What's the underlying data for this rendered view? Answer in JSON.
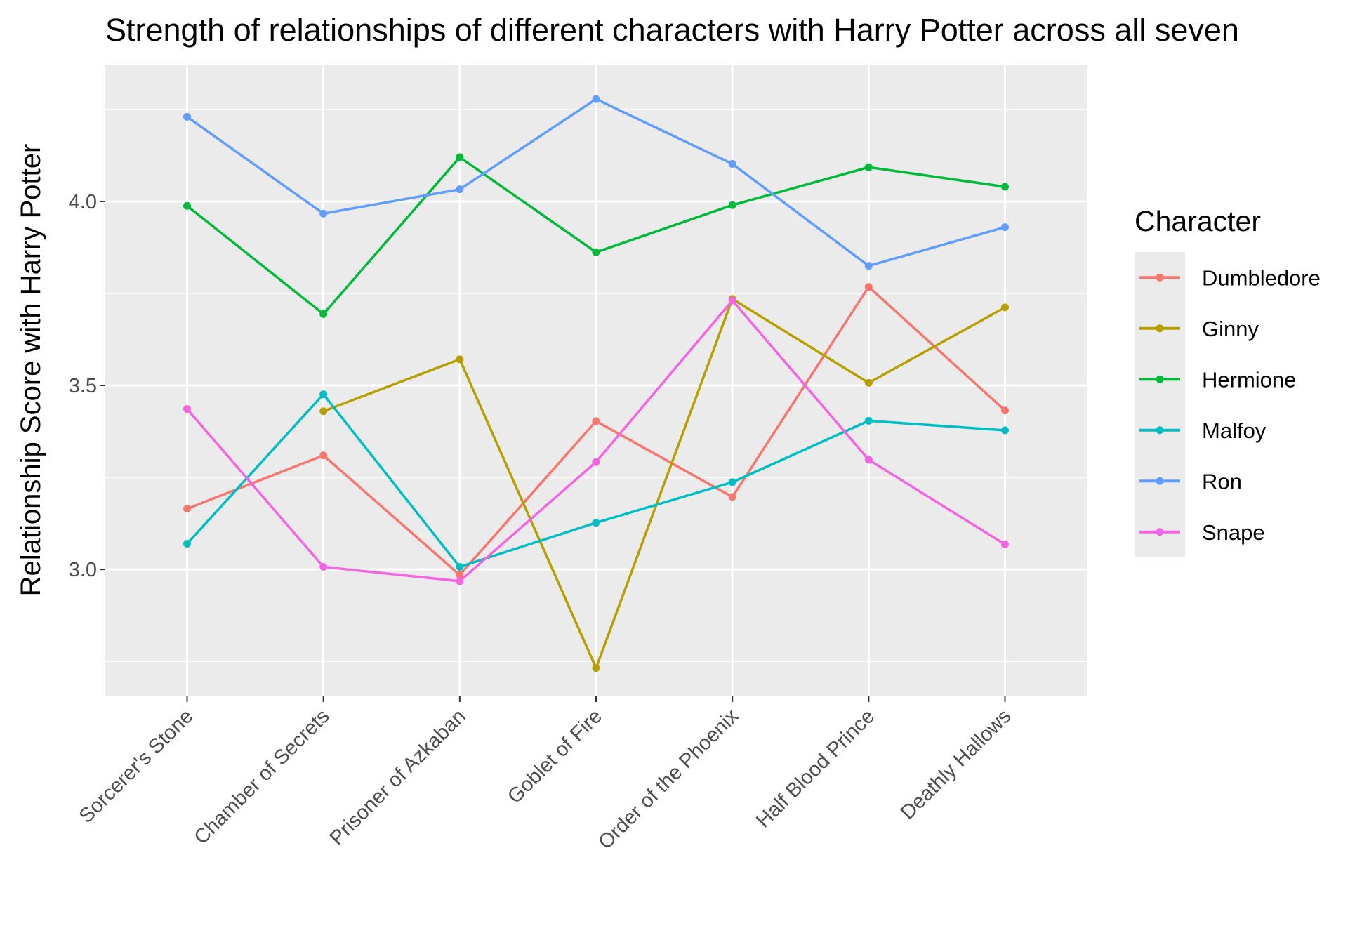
{
  "chart_data": {
    "type": "line",
    "title": "Strength of relationships of different characters with Harry Potter across all seven",
    "xlabel": "",
    "ylabel": "Relationship Score with Harry Potter",
    "categories": [
      "Sorcerer's Stone",
      "Chamber of Secrets",
      "Prisoner of Azkaban",
      "Goblet of Fire",
      "Order of the Phoenix",
      "Half Blood Prince",
      "Deathly Hallows"
    ],
    "ylim": [
      2.655,
      4.37
    ],
    "yticks": [
      3.0,
      3.5,
      4.0
    ],
    "ytick_labels": [
      "3.0",
      "3.5",
      "4.0"
    ],
    "grid": true,
    "legend_title": "Character",
    "legend_position": "right",
    "series": [
      {
        "name": "Dumbledore",
        "color": "#F8766D",
        "values": [
          3.165,
          3.31,
          2.985,
          3.403,
          3.197,
          3.768,
          3.432
        ]
      },
      {
        "name": "Ginny",
        "color": "#B79F00",
        "values": [
          null,
          3.43,
          3.571,
          2.732,
          3.735,
          3.507,
          3.712
        ]
      },
      {
        "name": "Hermione",
        "color": "#00BA38",
        "values": [
          3.988,
          3.694,
          4.12,
          3.862,
          3.99,
          4.093,
          4.04
        ]
      },
      {
        "name": "Malfoy",
        "color": "#00BFC4",
        "values": [
          3.07,
          3.476,
          3.007,
          3.127,
          3.237,
          3.404,
          3.378
        ]
      },
      {
        "name": "Ron",
        "color": "#619CFF",
        "values": [
          4.23,
          3.967,
          4.033,
          4.278,
          4.102,
          3.825,
          3.93
        ]
      },
      {
        "name": "Snape",
        "color": "#F564E3",
        "values": [
          3.436,
          3.007,
          2.968,
          3.292,
          3.731,
          3.298,
          3.068
        ]
      }
    ]
  }
}
